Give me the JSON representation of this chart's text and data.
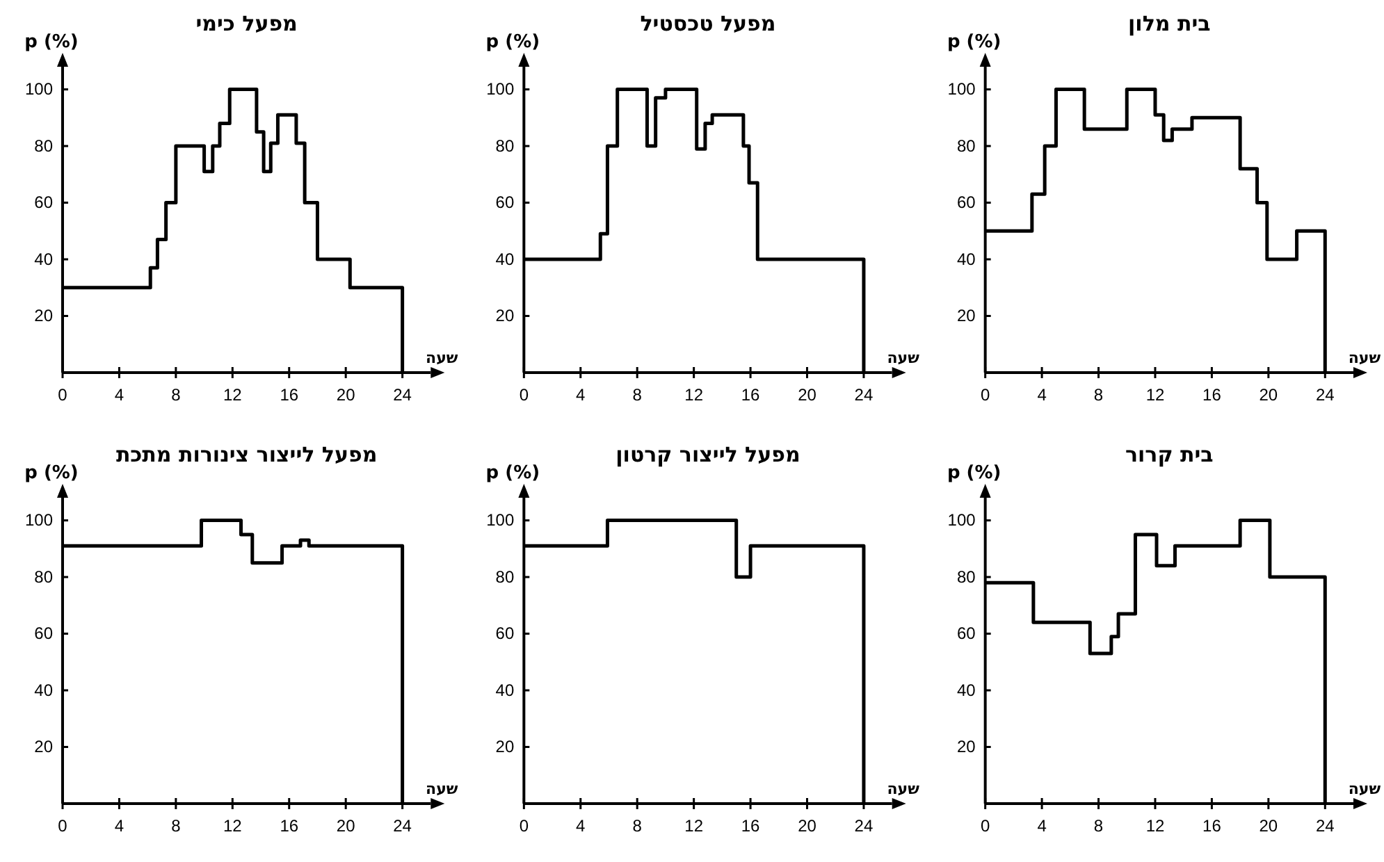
{
  "chart_data": [
    {
      "type": "step",
      "title": "מפעל כימי",
      "xlabel": "שעה",
      "ylabel": "p (%)",
      "color": "#000000",
      "line_style": "solid",
      "marker": "none",
      "grid": false,
      "xlim": [
        0,
        26
      ],
      "xticks": [
        0,
        4,
        8,
        12,
        16,
        20,
        24
      ],
      "ylim": [
        0,
        108
      ],
      "yticks": [
        20,
        40,
        60,
        80,
        100
      ],
      "x": [
        0,
        6.2,
        6.7,
        7.3,
        8,
        10,
        10.6,
        11.1,
        11.8,
        13.7,
        14.2,
        14.7,
        15.2,
        16.5,
        17.1,
        18,
        20.3,
        24
      ],
      "values": [
        30,
        37,
        47,
        60,
        80,
        71,
        80,
        88,
        100,
        85,
        71,
        81,
        91,
        81,
        60,
        40,
        30,
        0
      ]
    },
    {
      "type": "step",
      "title": "מפעל טכסטיל",
      "xlabel": "שעה",
      "ylabel": "p (%)",
      "color": "#000000",
      "line_style": "solid",
      "marker": "none",
      "grid": false,
      "xlim": [
        0,
        26
      ],
      "xticks": [
        0,
        4,
        8,
        12,
        16,
        20,
        24
      ],
      "ylim": [
        0,
        108
      ],
      "yticks": [
        20,
        40,
        60,
        80,
        100
      ],
      "x": [
        0,
        5.4,
        5.9,
        6.6,
        8.7,
        9.3,
        10,
        12.2,
        12.8,
        13.3,
        15.5,
        15.9,
        16.5,
        24
      ],
      "values": [
        40,
        49,
        80,
        100,
        80,
        97,
        100,
        79,
        88,
        91,
        80,
        67,
        40,
        0
      ]
    },
    {
      "type": "step",
      "title": "בית מלון",
      "xlabel": "שעה",
      "ylabel": "p (%)",
      "color": "#000000",
      "line_style": "solid",
      "marker": "none",
      "grid": false,
      "xlim": [
        0,
        26
      ],
      "xticks": [
        0,
        4,
        8,
        12,
        16,
        20,
        24
      ],
      "ylim": [
        0,
        108
      ],
      "yticks": [
        20,
        40,
        60,
        80,
        100
      ],
      "x": [
        0,
        3.3,
        4.2,
        5,
        7,
        10,
        12,
        12.6,
        13.2,
        14.6,
        18,
        19.2,
        19.9,
        22,
        24
      ],
      "values": [
        50,
        63,
        80,
        100,
        86,
        100,
        91,
        82,
        86,
        90,
        72,
        60,
        40,
        50,
        0
      ]
    },
    {
      "type": "step",
      "title": "מפעל לייצור צינורות מתכת",
      "xlabel": "שעה",
      "ylabel": "p (%)",
      "color": "#000000",
      "line_style": "solid",
      "marker": "none",
      "grid": false,
      "xlim": [
        0,
        26
      ],
      "xticks": [
        0,
        4,
        8,
        12,
        16,
        20,
        24
      ],
      "ylim": [
        0,
        108
      ],
      "yticks": [
        20,
        40,
        60,
        80,
        100
      ],
      "x": [
        0,
        9.8,
        12.6,
        13.4,
        15.5,
        16.8,
        17.4,
        24
      ],
      "values": [
        91,
        100,
        95,
        85,
        91,
        93,
        91,
        0
      ]
    },
    {
      "type": "step",
      "title": "מפעל לייצור קרטון",
      "xlabel": "שעה",
      "ylabel": "p (%)",
      "color": "#000000",
      "line_style": "solid",
      "marker": "none",
      "grid": false,
      "xlim": [
        0,
        26
      ],
      "xticks": [
        0,
        4,
        8,
        12,
        16,
        20,
        24
      ],
      "ylim": [
        0,
        108
      ],
      "yticks": [
        20,
        40,
        60,
        80,
        100
      ],
      "x": [
        0,
        5.9,
        15,
        16,
        24
      ],
      "values": [
        91,
        100,
        80,
        91,
        0
      ]
    },
    {
      "type": "step",
      "title": "בית קרור",
      "xlabel": "שעה",
      "ylabel": "p (%)",
      "color": "#000000",
      "line_style": "solid",
      "marker": "none",
      "grid": false,
      "xlim": [
        0,
        26
      ],
      "xticks": [
        0,
        4,
        8,
        12,
        16,
        20,
        24
      ],
      "ylim": [
        0,
        108
      ],
      "yticks": [
        20,
        40,
        60,
        80,
        100
      ],
      "x": [
        0,
        3.4,
        7.4,
        8.9,
        9.4,
        10.6,
        12.1,
        13.4,
        18,
        20.1,
        24
      ],
      "values": [
        78,
        64,
        53,
        59,
        67,
        95,
        84,
        91,
        100,
        80,
        0
      ]
    }
  ]
}
